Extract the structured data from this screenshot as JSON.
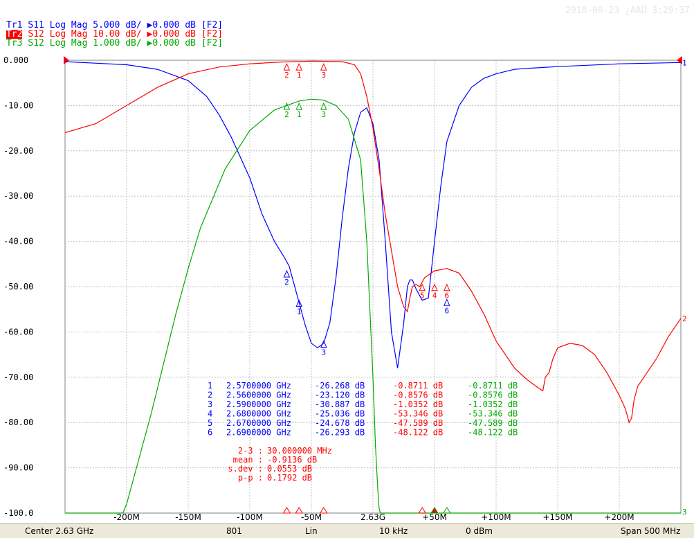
{
  "timestamp": "2018-06-23 ¿AAÜ 3:29:37",
  "traces": [
    {
      "tag": "Tr1",
      "param": "S11",
      "format": "Log Mag",
      "scale": "5.000 dB/",
      "ref": "0.000 dB",
      "fn": "[F2]",
      "color": "#0000ff"
    },
    {
      "tag": "Tr2",
      "param": "S12",
      "format": "Log Mag",
      "scale": "10.00 dB/",
      "ref": "0.000 dB",
      "fn": "[F2]",
      "color": "#ff0000"
    },
    {
      "tag": "Tr3",
      "param": "S12",
      "format": "Log Mag",
      "scale": "1.000 dB/",
      "ref": "0.000 dB",
      "fn": "[F2]",
      "color": "#00aa00"
    }
  ],
  "chart_data": {
    "type": "line",
    "y_ticks": [
      "0.000",
      "-10.00",
      "-20.00",
      "-30.00",
      "-40.00",
      "-50.00",
      "-60.00",
      "-70.00",
      "-80.00",
      "-90.00",
      "-100.0"
    ],
    "ylim": [
      -100,
      0
    ],
    "x_ticks": [
      "-200M",
      "-150M",
      "-100M",
      "-50M",
      "2.63G",
      "+50M",
      "+100M",
      "+150M",
      "+200M"
    ],
    "xlim_offset_mhz": [
      -250,
      250
    ],
    "grid": true,
    "series": [
      {
        "color": "#0000ff",
        "x": [
          -250,
          -200,
          -175,
          -150,
          -135,
          -125,
          -115,
          -100,
          -90,
          -80,
          -72,
          -68,
          -65,
          -60,
          -55,
          -50,
          -45,
          -40,
          -35,
          -30,
          -25,
          -20,
          -15,
          -10,
          -5,
          0,
          5,
          10,
          15,
          20,
          25,
          28,
          30,
          32,
          35,
          40,
          45,
          50,
          55,
          60,
          70,
          80,
          90,
          100,
          115,
          125,
          150,
          200,
          250
        ],
        "y": [
          -0.3,
          -1.0,
          -2.0,
          -4.5,
          -8.0,
          -12.0,
          -17.0,
          -26.0,
          -34.0,
          -40.0,
          -43.5,
          -45.5,
          -48.5,
          -53.5,
          -58.5,
          -62.5,
          -63.5,
          -62.5,
          -58.0,
          -48.0,
          -35.0,
          -24.0,
          -16.0,
          -11.5,
          -10.5,
          -14.0,
          -22.0,
          -40.0,
          -60.0,
          -68.0,
          -58.0,
          -50.0,
          -48.5,
          -48.5,
          -50.5,
          -53.0,
          -52.5,
          -40.0,
          -28.0,
          -18.0,
          -10.0,
          -6.0,
          -4.0,
          -3.0,
          -2.0,
          -1.8,
          -1.4,
          -0.8,
          -0.5
        ]
      },
      {
        "color": "#ff0000",
        "x": [
          -250,
          -225,
          -200,
          -175,
          -150,
          -125,
          -100,
          -75,
          -50,
          -25,
          -15,
          -10,
          -5,
          0,
          5,
          10,
          15,
          20,
          25,
          28,
          30,
          32,
          35,
          38,
          42,
          50,
          60,
          70,
          80,
          90,
          100,
          115,
          125,
          135,
          138,
          140,
          143,
          146,
          150,
          160,
          170,
          180,
          190,
          200,
          205,
          208,
          210,
          212,
          215,
          220,
          230,
          240,
          250
        ],
        "y": [
          -16.0,
          -14.0,
          -10.0,
          -6.0,
          -3.0,
          -1.5,
          -0.8,
          -0.4,
          -0.2,
          -0.3,
          -1.0,
          -3.0,
          -8.0,
          -15.0,
          -24.0,
          -34.0,
          -42.0,
          -50.0,
          -54.5,
          -55.5,
          -52.5,
          -50.0,
          -49.5,
          -50.0,
          -48.0,
          -46.5,
          -46.0,
          -47.0,
          -51.0,
          -56.0,
          -62.0,
          -68.0,
          -70.5,
          -72.5,
          -73.0,
          -70.0,
          -69.0,
          -66.0,
          -63.5,
          -62.5,
          -63.0,
          -65.0,
          -69.0,
          -74.0,
          -77.0,
          -80.0,
          -79.0,
          -75.0,
          -72.0,
          -70.0,
          -66.0,
          -61.0,
          -57.0
        ]
      },
      {
        "color": "#00aa00",
        "x": [
          -250,
          -203,
          -200,
          -190,
          -180,
          -170,
          -160,
          -150,
          -140,
          -120,
          -100,
          -80,
          -60,
          -50,
          -40,
          -30,
          -20,
          -10,
          -5,
          0,
          2,
          4,
          5,
          6,
          250
        ],
        "y": [
          -100,
          -100,
          -98.0,
          -88.0,
          -78.0,
          -67.0,
          -56.0,
          -46.0,
          -37.0,
          -24.0,
          -15.5,
          -11.0,
          -9.0,
          -8.6,
          -8.8,
          -10.0,
          -13.0,
          -22.0,
          -40.0,
          -70.0,
          -85.0,
          -95.0,
          -99.0,
          -100,
          -100
        ]
      }
    ],
    "marker_table": [
      {
        "n": "1",
        "freq": "2.5700000 GHz",
        "tr1": "-26.268 dB",
        "tr2": "-0.8711 dB",
        "tr3": "-0.8711 dB"
      },
      {
        "n": "2",
        "freq": "2.5600000 GHz",
        "tr1": "-23.120 dB",
        "tr2": "-0.8576 dB",
        "tr3": "-0.8576 dB"
      },
      {
        "n": "3",
        "freq": "2.5900000 GHz",
        "tr1": "-30.887 dB",
        "tr2": "-1.0352 dB",
        "tr3": "-1.0352 dB"
      },
      {
        "n": "4",
        "freq": "2.6800000 GHz",
        "tr1": "-25.036 dB",
        "tr2": "-53.346 dB",
        "tr3": "-53.346 dB"
      },
      {
        "n": "5",
        "freq": "2.6700000 GHz",
        "tr1": "-24.678 dB",
        "tr2": "-47.589 dB",
        "tr3": "-47.589 dB"
      },
      {
        "n": "6",
        "freq": "2.6900000 GHz",
        "tr1": "-26.293 dB",
        "tr2": "-48.122 dB",
        "tr3": "-48.122 dB"
      }
    ],
    "stats": [
      {
        "label": "2-3 :",
        "value": "30.000000 MHz"
      },
      {
        "label": "mean :",
        "value": "-0.9136 dB"
      },
      {
        "label": "s.dev :",
        "value": "0.0553 dB"
      },
      {
        "label": "p-p :",
        "value": "0.1792 dB"
      }
    ],
    "right_labels": [
      "1",
      "2",
      "3"
    ]
  },
  "status": {
    "center": "Center 2.63 GHz",
    "points": "801",
    "sweep": "Lin",
    "ifbw": "10 kHz",
    "power": "0 dBm",
    "span": "Span 500 MHz"
  }
}
